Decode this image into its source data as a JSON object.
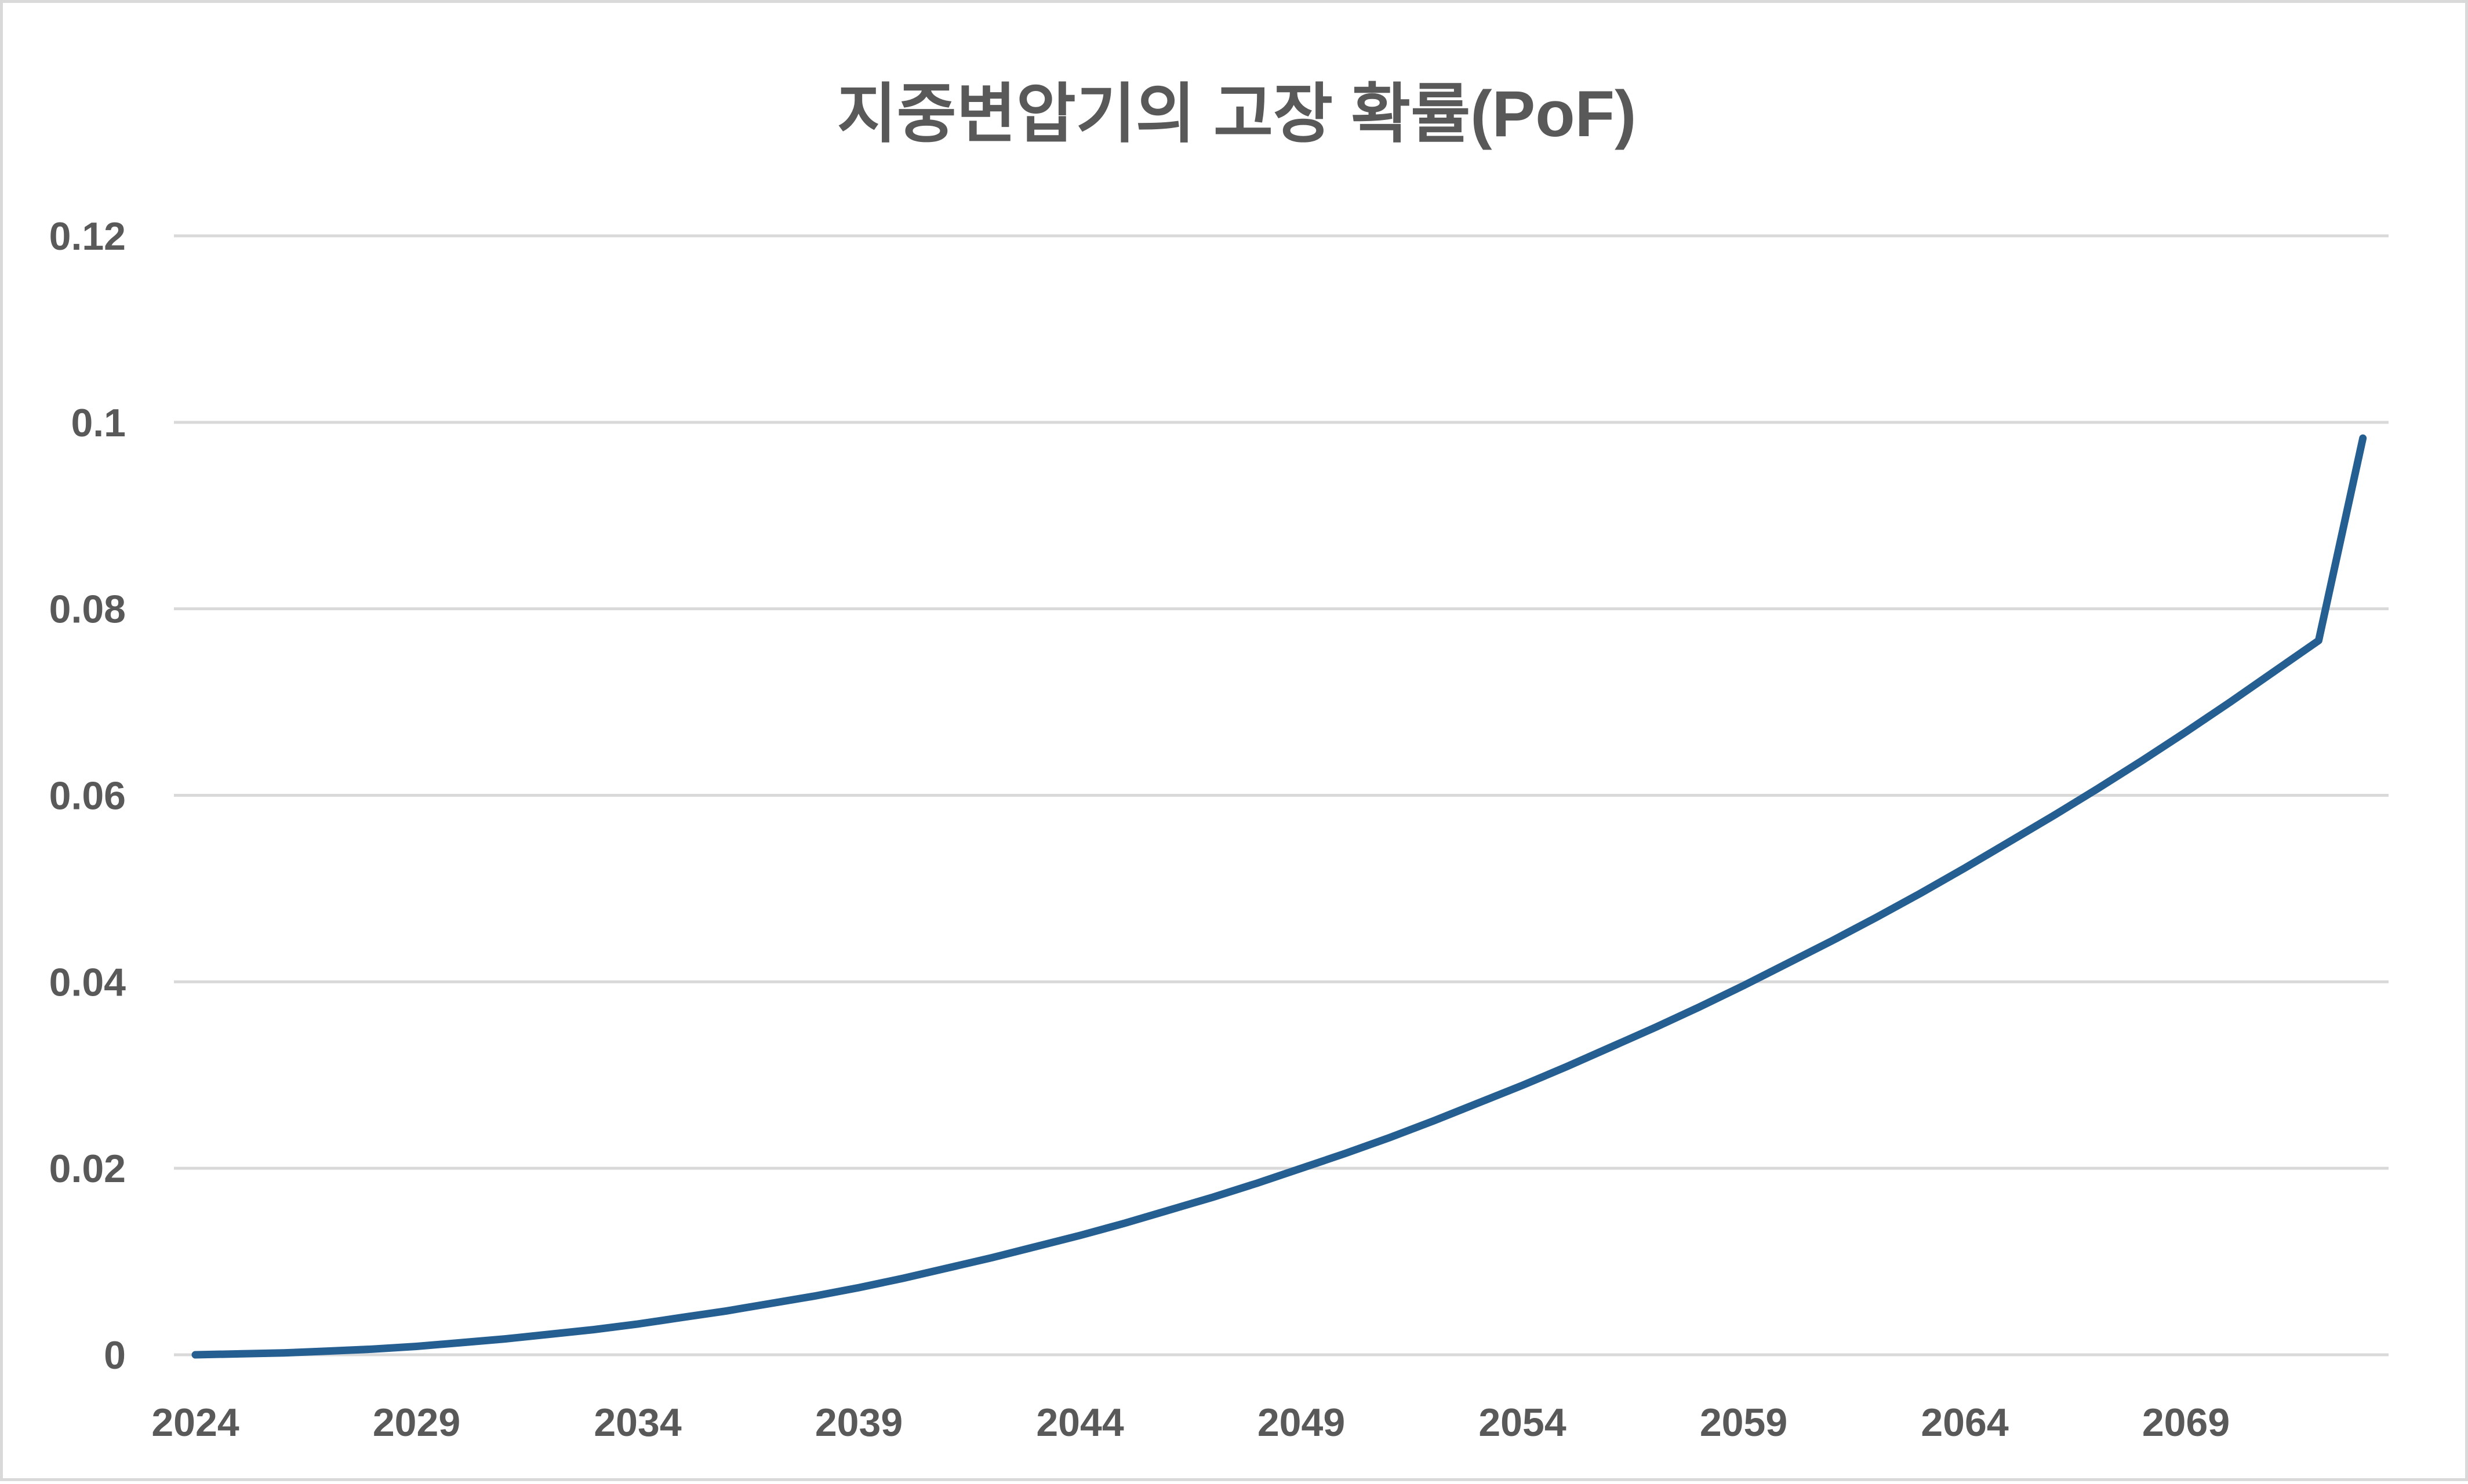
{
  "chart_data": {
    "type": "line",
    "title": "지중변압기의 고장 확률(PoF)",
    "xlabel": "",
    "ylabel": "",
    "ylim": [
      0,
      0.12
    ],
    "yticks": [
      0,
      0.02,
      0.04,
      0.06,
      0.08,
      0.1,
      0.12
    ],
    "ytick_labels": [
      "0",
      "0.02",
      "0.04",
      "0.06",
      "0.08",
      "0.1",
      "0.12"
    ],
    "xlim": [
      2024,
      2073
    ],
    "xtick_labels": [
      "2024",
      "2029",
      "2034",
      "2039",
      "2044",
      "2049",
      "2054",
      "2059",
      "2064",
      "2069"
    ],
    "grid": true,
    "legend": "none",
    "series": [
      {
        "color": "#255e91",
        "x": [
          2024,
          2025,
          2026,
          2027,
          2028,
          2029,
          2030,
          2031,
          2032,
          2033,
          2034,
          2035,
          2036,
          2037,
          2038,
          2039,
          2040,
          2041,
          2042,
          2043,
          2044,
          2045,
          2046,
          2047,
          2048,
          2049,
          2050,
          2051,
          2052,
          2053,
          2054,
          2055,
          2056,
          2057,
          2058,
          2059,
          2060,
          2061,
          2062,
          2063,
          2064,
          2065,
          2066,
          2067,
          2068,
          2069,
          2070,
          2071,
          2072,
          2073
        ],
        "values": [
          0.0,
          0.0001,
          0.0002,
          0.0004,
          0.0006,
          0.0009,
          0.0013,
          0.0017,
          0.0022,
          0.0027,
          0.0033,
          0.004,
          0.0047,
          0.0055,
          0.0063,
          0.0072,
          0.0082,
          0.0093,
          0.0104,
          0.0116,
          0.0128,
          0.0141,
          0.0155,
          0.0169,
          0.0184,
          0.02,
          0.0216,
          0.0233,
          0.0251,
          0.027,
          0.0289,
          0.0309,
          0.033,
          0.0351,
          0.0373,
          0.0396,
          0.042,
          0.0444,
          0.0469,
          0.0495,
          0.0522,
          0.055,
          0.0578,
          0.0607,
          0.0637,
          0.0668,
          0.07,
          0.0733,
          0.0766,
          0.0983
        ]
      }
    ]
  }
}
